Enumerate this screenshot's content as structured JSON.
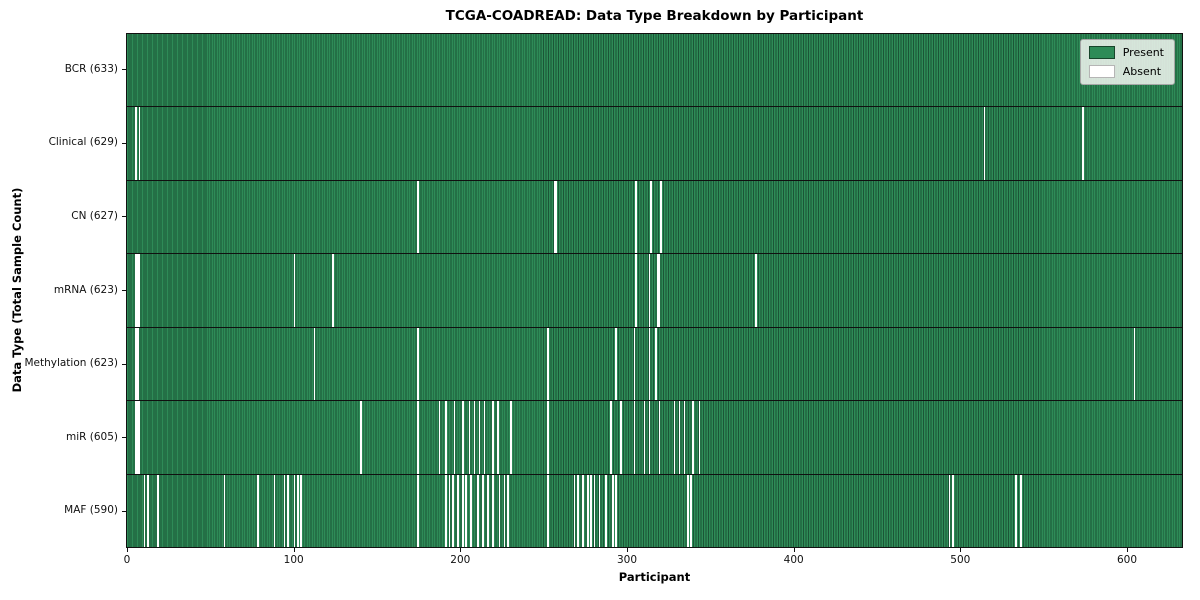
{
  "chart_data": {
    "type": "heatmap",
    "title": "TCGA-COADREAD: Data Type Breakdown by Participant",
    "xlabel": "Participant",
    "ylabel": "Data Type (Total Sample Count)",
    "n_participants": 633,
    "x_ticks": [
      0,
      100,
      200,
      300,
      400,
      500,
      600
    ],
    "legend": [
      {
        "label": "Present",
        "color": "#2E8B57"
      },
      {
        "label": "Absent",
        "color": "#FFFFFF"
      }
    ],
    "colors": {
      "present": "#2E8B57",
      "present_edge": "#1B5536",
      "absent": "#FFFFFF",
      "plot_border": "#1A1A1A"
    },
    "rows": [
      {
        "label": "BCR (633)",
        "data_type": "BCR",
        "total": 633,
        "absent": []
      },
      {
        "label": "Clinical (629)",
        "data_type": "Clinical",
        "total": 629,
        "absent": [
          5,
          7,
          514,
          573
        ]
      },
      {
        "label": "CN (627)",
        "data_type": "CN",
        "total": 627,
        "absent": [
          174,
          256,
          257,
          305,
          314,
          320
        ]
      },
      {
        "label": "mRNA (623)",
        "data_type": "mRNA",
        "total": 623,
        "absent": [
          5,
          6,
          7,
          100,
          123,
          305,
          313,
          318,
          319,
          377
        ]
      },
      {
        "label": "Methylation (623)",
        "data_type": "Methylation",
        "total": 623,
        "absent": [
          5,
          6,
          112,
          174,
          252,
          293,
          304,
          313,
          317,
          604
        ]
      },
      {
        "label": "miR (605)",
        "data_type": "miR",
        "total": 605,
        "absent": [
          5,
          6,
          7,
          140,
          174,
          187,
          191,
          196,
          201,
          205,
          208,
          211,
          214,
          219,
          222,
          230,
          252,
          290,
          296,
          304,
          310,
          313,
          319,
          328,
          331,
          334,
          339,
          343
        ]
      },
      {
        "label": "MAF (590)",
        "data_type": "MAF",
        "total": 590,
        "absent": [
          10,
          12,
          18,
          58,
          78,
          88,
          94,
          96,
          100,
          102,
          104,
          174,
          191,
          193,
          195,
          198,
          201,
          203,
          206,
          210,
          213,
          216,
          219,
          223,
          226,
          228,
          252,
          268,
          270,
          273,
          276,
          278,
          280,
          283,
          287,
          291,
          293,
          336,
          338,
          493,
          495,
          533,
          536
        ]
      }
    ]
  }
}
